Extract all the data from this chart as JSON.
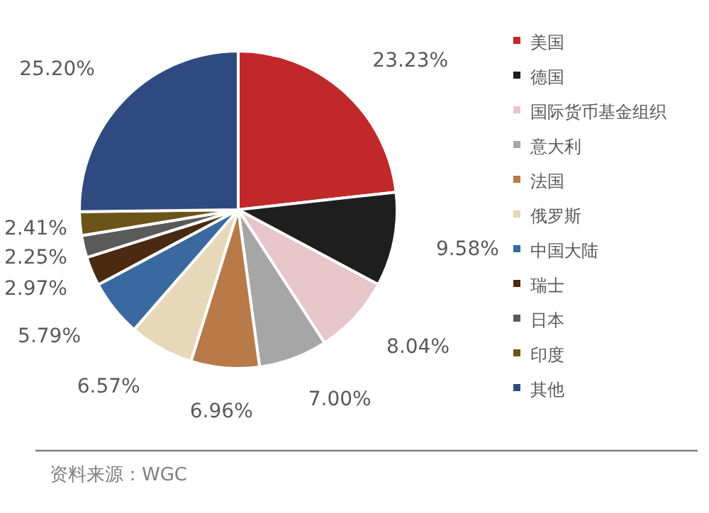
{
  "chart_data": {
    "type": "pie",
    "categories": [
      "美国",
      "德国",
      "国际货币基金组织",
      "意大利",
      "法国",
      "俄罗斯",
      "中国大陆",
      "瑞士",
      "日本",
      "印度",
      "其他"
    ],
    "values": [
      23.23,
      9.58,
      8.04,
      7.0,
      6.96,
      6.57,
      5.79,
      2.97,
      2.25,
      2.41,
      25.2
    ],
    "colors": [
      "#c0282a",
      "#1e1e1e",
      "#e6c6ca",
      "#a6a6a6",
      "#b87a48",
      "#e6d8b8",
      "#3a69a0",
      "#4a2a10",
      "#5a5a5a",
      "#6a5418",
      "#2e4a80"
    ],
    "value_labels": [
      "23.23%",
      "9.58%",
      "8.04%",
      "7.00%",
      "6.96%",
      "6.57%",
      "5.79%",
      "2.97%",
      "2.25%",
      "2.41%",
      "25.20%"
    ],
    "legend": "right",
    "annotations": [
      "资料来源：WGC"
    ]
  }
}
